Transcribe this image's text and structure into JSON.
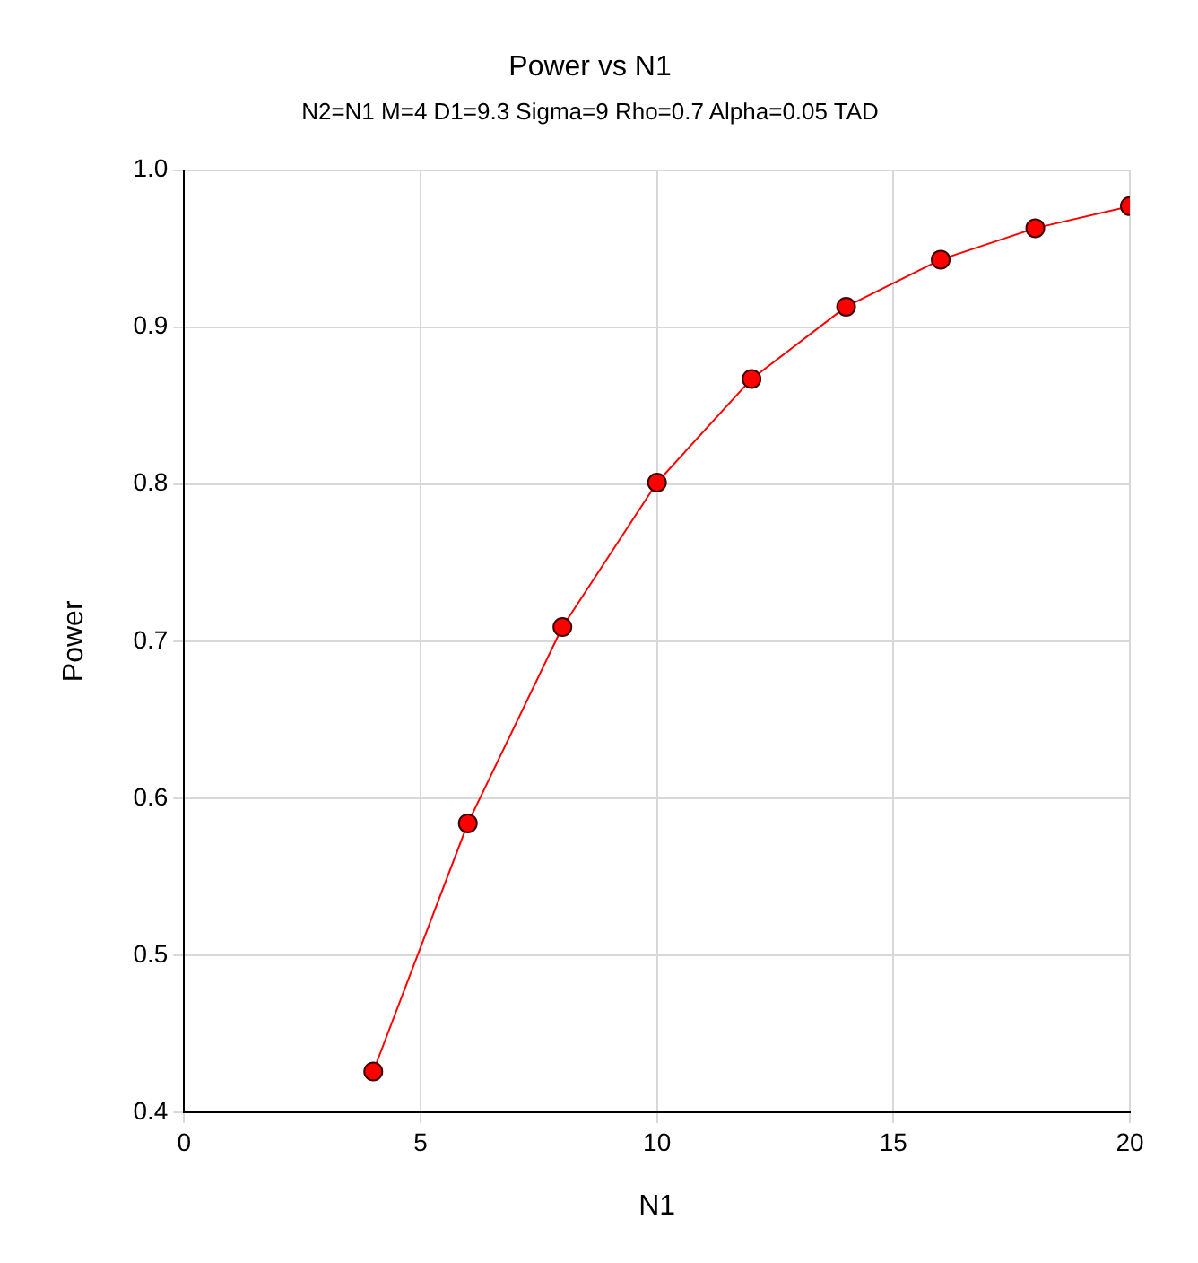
{
  "chart_data": {
    "type": "line",
    "title": "Power vs N1",
    "subtitle": "N2=N1 M=4 D1=9.3 Sigma=9 Rho=0.7 Alpha=0.05 TAD",
    "xlabel": "N1",
    "ylabel": "Power",
    "x": [
      4,
      6,
      8,
      10,
      12,
      14,
      16,
      18,
      20
    ],
    "series": [
      {
        "color": "#ff0000",
        "values": [
          0.426,
          0.584,
          0.709,
          0.801,
          0.867,
          0.913,
          0.943,
          0.963,
          0.977
        ]
      }
    ],
    "xlim": [
      0,
      20
    ],
    "xticks": [
      0,
      5,
      10,
      15,
      20
    ],
    "ylim": [
      0.4,
      1.0
    ],
    "yticks": [
      0.4,
      0.5,
      0.6,
      0.7,
      0.8,
      0.9,
      {
        "value": 1,
        "label": "1.0"
      }
    ],
    "grid": true,
    "marker": "circle",
    "line_style": "solid"
  }
}
